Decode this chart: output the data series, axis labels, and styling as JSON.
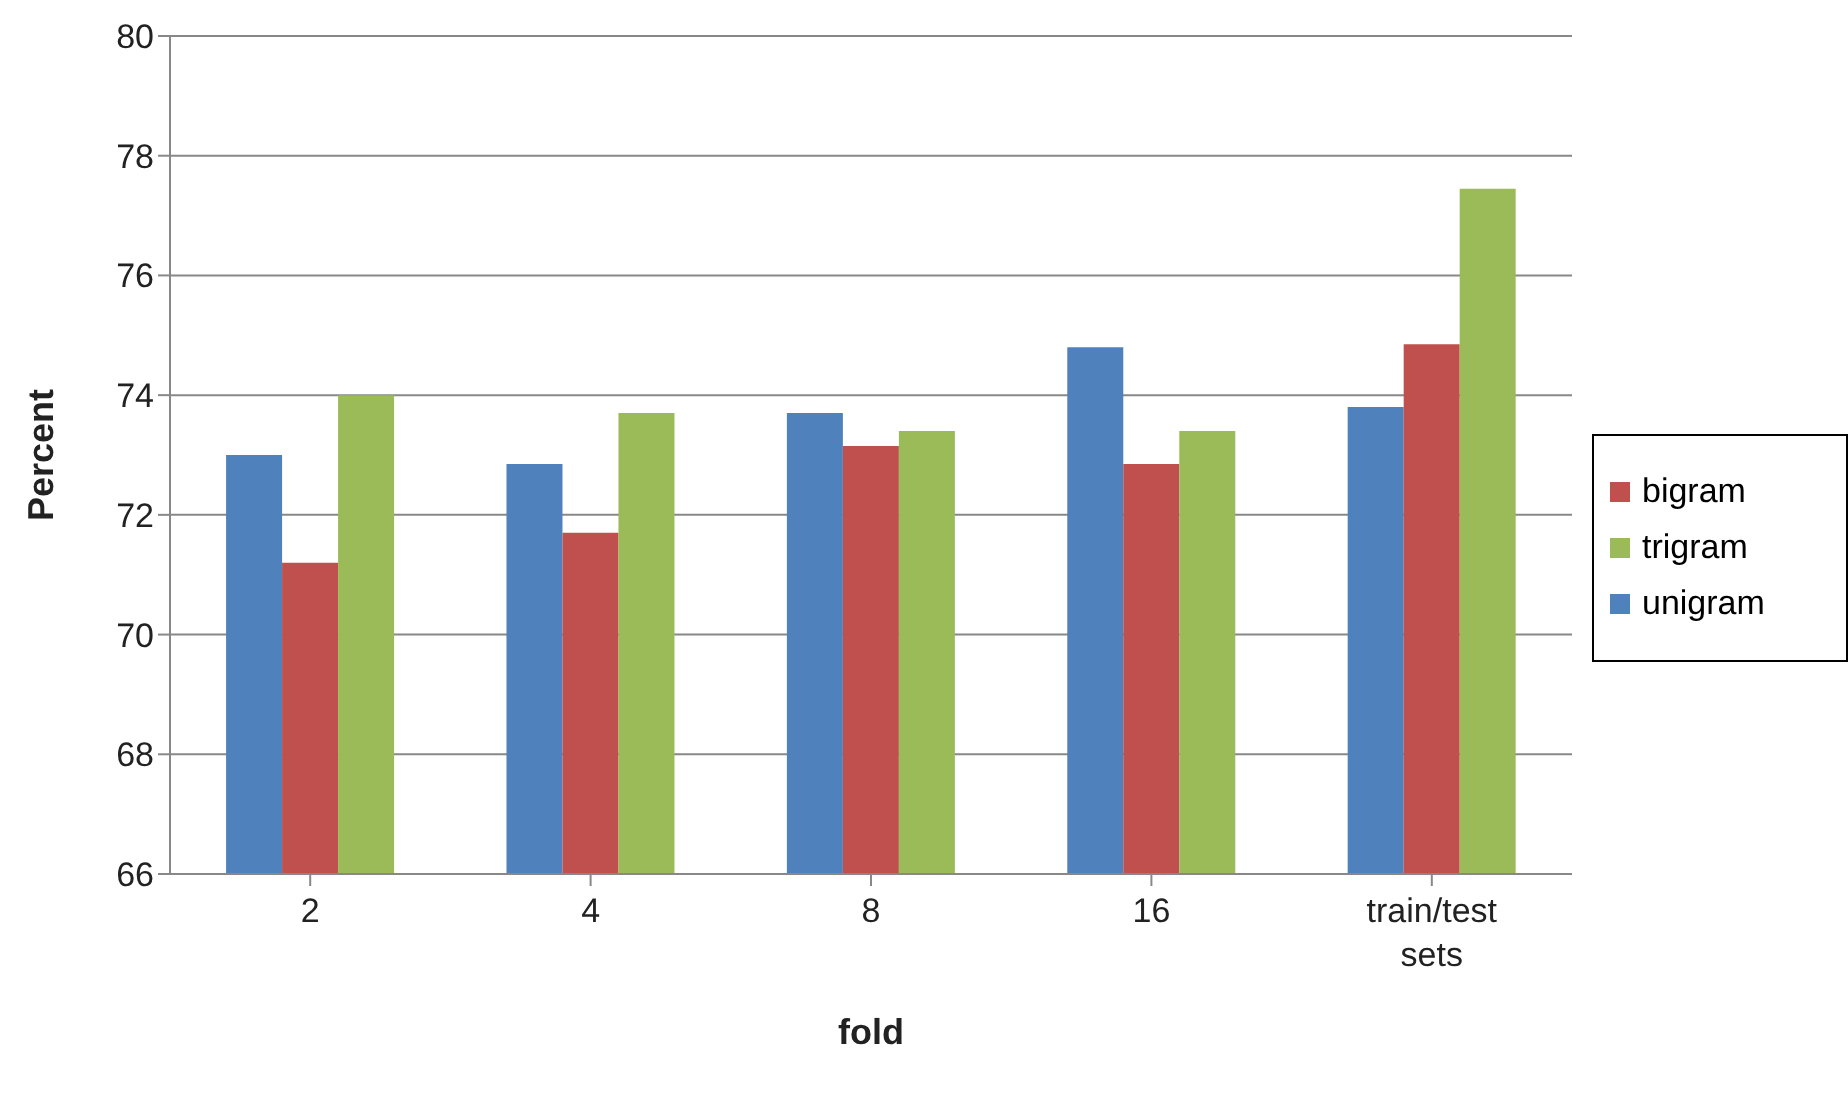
{
  "chart_data": {
    "type": "bar",
    "xlabel": "fold",
    "ylabel": "Percent",
    "categories": [
      "2",
      "4",
      "8",
      "16",
      "train/test sets"
    ],
    "series": [
      {
        "name": "unigram",
        "color": "#4f81bd",
        "values": [
          73.0,
          72.85,
          73.7,
          74.8,
          73.8
        ]
      },
      {
        "name": "bigram",
        "color": "#c0504d",
        "values": [
          71.2,
          71.7,
          73.15,
          72.85,
          74.85
        ]
      },
      {
        "name": "trigram",
        "color": "#9bbb59",
        "values": [
          74.0,
          73.7,
          73.4,
          73.4,
          77.45
        ]
      }
    ],
    "ylim": [
      66,
      80
    ],
    "yticks": [
      66,
      68,
      70,
      72,
      74,
      76,
      78,
      80
    ],
    "grid": "y",
    "legend": "right"
  }
}
